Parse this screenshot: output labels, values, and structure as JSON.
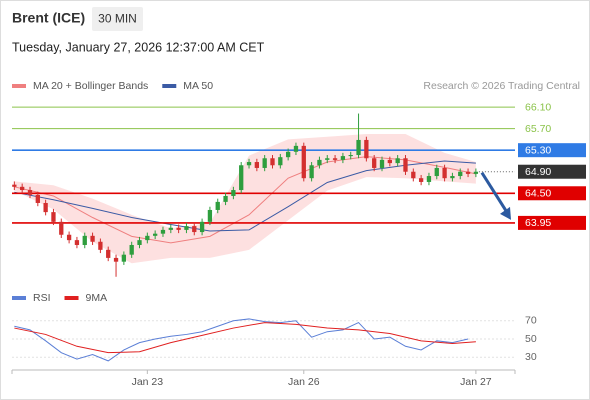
{
  "header": {
    "title": "Brent (ICE)",
    "interval": "30 MIN",
    "datetime": "Tuesday, January 27, 2026 12:37:00 AM CET"
  },
  "chart_data": [
    {
      "type": "candlestick",
      "attribution": "Research © 2026 Trading Central",
      "up_color": "#2e9e3e",
      "down_color": "#d32f2f",
      "xlim": [
        -0.3,
        64
      ],
      "ylim": [
        62.89,
        66.38
      ],
      "open": [
        64.66,
        64.62,
        64.56,
        64.47,
        64.32,
        64.15,
        63.97,
        63.73,
        63.63,
        63.54,
        63.71,
        63.6,
        63.45,
        63.3,
        63.23,
        63.36,
        63.54,
        63.63,
        63.71,
        63.75,
        63.82,
        63.86,
        63.82,
        63.89,
        63.78,
        63.97,
        64.19,
        64.34,
        64.45,
        64.56,
        65.02,
        65.08,
        64.97,
        65.15,
        65.02,
        65.17,
        65.27,
        65.38,
        64.78,
        65.02,
        65.12,
        65.15,
        65.12,
        65.19,
        65.21,
        65.49,
        65.15,
        64.97,
        65.12,
        65.06,
        65.15,
        64.9,
        64.78,
        64.71,
        64.82,
        64.97,
        64.78,
        64.82,
        64.9,
        64.86
      ],
      "high": [
        64.72,
        64.68,
        64.62,
        64.53,
        64.38,
        64.21,
        64.03,
        63.79,
        63.69,
        63.77,
        63.77,
        63.66,
        63.51,
        63.36,
        63.42,
        63.6,
        63.69,
        63.77,
        63.81,
        63.88,
        63.92,
        63.92,
        63.95,
        63.95,
        64.03,
        64.25,
        64.4,
        64.51,
        64.62,
        65.08,
        65.14,
        65.14,
        65.21,
        65.21,
        65.23,
        65.33,
        65.44,
        65.44,
        65.08,
        65.18,
        65.21,
        65.21,
        65.25,
        65.27,
        65.98,
        65.55,
        65.21,
        65.18,
        65.18,
        65.21,
        65.21,
        64.96,
        64.84,
        64.88,
        65.03,
        65.03,
        64.88,
        64.96,
        64.96,
        64.96
      ],
      "low": [
        64.56,
        64.5,
        64.41,
        64.26,
        64.09,
        63.91,
        63.67,
        63.57,
        63.48,
        63.48,
        63.54,
        63.39,
        63.24,
        62.95,
        63.17,
        63.3,
        63.48,
        63.57,
        63.65,
        63.69,
        63.76,
        63.76,
        63.76,
        63.72,
        63.72,
        63.91,
        64.13,
        64.28,
        64.39,
        64.5,
        64.96,
        64.91,
        64.91,
        64.96,
        64.96,
        65.11,
        65.21,
        64.72,
        64.72,
        64.96,
        65.06,
        65.06,
        65.06,
        65.13,
        65.15,
        65.09,
        64.91,
        64.91,
        65.0,
        65.0,
        64.84,
        64.72,
        64.65,
        64.65,
        64.76,
        64.72,
        64.72,
        64.76,
        64.8,
        64.8
      ],
      "close": [
        64.62,
        64.56,
        64.47,
        64.32,
        64.15,
        63.97,
        63.73,
        63.63,
        63.54,
        63.71,
        63.6,
        63.45,
        63.3,
        63.23,
        63.36,
        63.54,
        63.63,
        63.71,
        63.75,
        63.82,
        63.86,
        63.82,
        63.89,
        63.78,
        63.97,
        64.19,
        64.34,
        64.45,
        64.56,
        65.02,
        65.08,
        64.97,
        65.15,
        65.02,
        65.17,
        65.27,
        65.38,
        64.78,
        65.02,
        65.12,
        65.15,
        65.12,
        65.19,
        65.21,
        65.49,
        65.15,
        64.97,
        65.12,
        65.06,
        65.15,
        64.9,
        64.78,
        64.71,
        64.82,
        64.97,
        64.78,
        64.82,
        64.9,
        64.86,
        64.9
      ],
      "overlays": [
        {
          "name": "MA 20 + Bollinger Bands",
          "color": "#ef7f7f",
          "fill": "#fcd6d6",
          "x": [
            0,
            5,
            10,
            15,
            20,
            25,
            30,
            35,
            40,
            45,
            50,
            55,
            59
          ],
          "values": [
            64.62,
            64.45,
            64.05,
            63.7,
            63.58,
            63.7,
            64.1,
            64.78,
            65.08,
            65.18,
            65.12,
            64.98,
            64.86
          ],
          "upper": [
            64.72,
            64.65,
            64.4,
            64.1,
            63.85,
            63.95,
            65.2,
            65.5,
            65.55,
            65.6,
            65.6,
            65.25,
            65.08
          ],
          "lower": [
            64.55,
            64.2,
            63.6,
            63.2,
            63.3,
            63.3,
            63.45,
            64.0,
            64.55,
            64.8,
            64.78,
            64.72,
            64.68
          ]
        },
        {
          "name": "MA 50",
          "color": "#3b5ba5",
          "x": [
            0,
            5,
            10,
            15,
            20,
            25,
            30,
            35,
            40,
            45,
            50,
            55,
            59
          ],
          "values": [
            64.52,
            64.38,
            64.22,
            64.05,
            63.92,
            63.8,
            63.82,
            64.25,
            64.7,
            64.92,
            65.02,
            65.1,
            65.06
          ]
        }
      ],
      "levels": [
        {
          "value": 66.1,
          "label": "66.10",
          "color": "#8bc34a",
          "boxed": false
        },
        {
          "value": 65.7,
          "label": "65.70",
          "color": "#8bc34a",
          "boxed": false
        },
        {
          "value": 65.3,
          "label": "65.30",
          "color": "#2f7be5",
          "boxed": true
        },
        {
          "value": 64.5,
          "label": "64.50",
          "color": "#e00000",
          "boxed": true
        },
        {
          "value": 63.95,
          "label": "63.95",
          "color": "#e00000",
          "boxed": true
        }
      ],
      "last_price": {
        "value": 64.9,
        "label": "64.90",
        "color": "#333333"
      }
    },
    {
      "type": "line",
      "xlim": [
        -0.3,
        64
      ],
      "ylim": [
        16,
        84
      ],
      "yticks": [
        30,
        50,
        70
      ],
      "xticks": [
        {
          "value": 17,
          "label": "Jan 23"
        },
        {
          "value": 37,
          "label": "Jan 26"
        },
        {
          "value": 59,
          "label": "Jan 27"
        }
      ],
      "series": [
        {
          "name": "RSI",
          "color": "#5b7fd6",
          "x": [
            0,
            2,
            4,
            6,
            8,
            10,
            12,
            14,
            16,
            18,
            20,
            22,
            24,
            26,
            28,
            30,
            32,
            34,
            36,
            38,
            40,
            42,
            44,
            46,
            48,
            50,
            52,
            54,
            56,
            58
          ],
          "values": [
            64,
            60,
            48,
            35,
            28,
            33,
            26,
            38,
            46,
            50,
            53,
            55,
            58,
            64,
            70,
            72,
            69,
            68,
            70,
            52,
            58,
            60,
            68,
            50,
            52,
            42,
            38,
            48,
            46,
            50
          ]
        },
        {
          "name": "9MA",
          "color": "#e02020",
          "x": [
            0,
            4,
            8,
            12,
            16,
            20,
            24,
            28,
            32,
            36,
            40,
            44,
            48,
            52,
            56,
            59
          ],
          "values": [
            62,
            55,
            42,
            35,
            36,
            46,
            54,
            62,
            68,
            66,
            62,
            60,
            56,
            48,
            45,
            47
          ]
        }
      ]
    }
  ]
}
